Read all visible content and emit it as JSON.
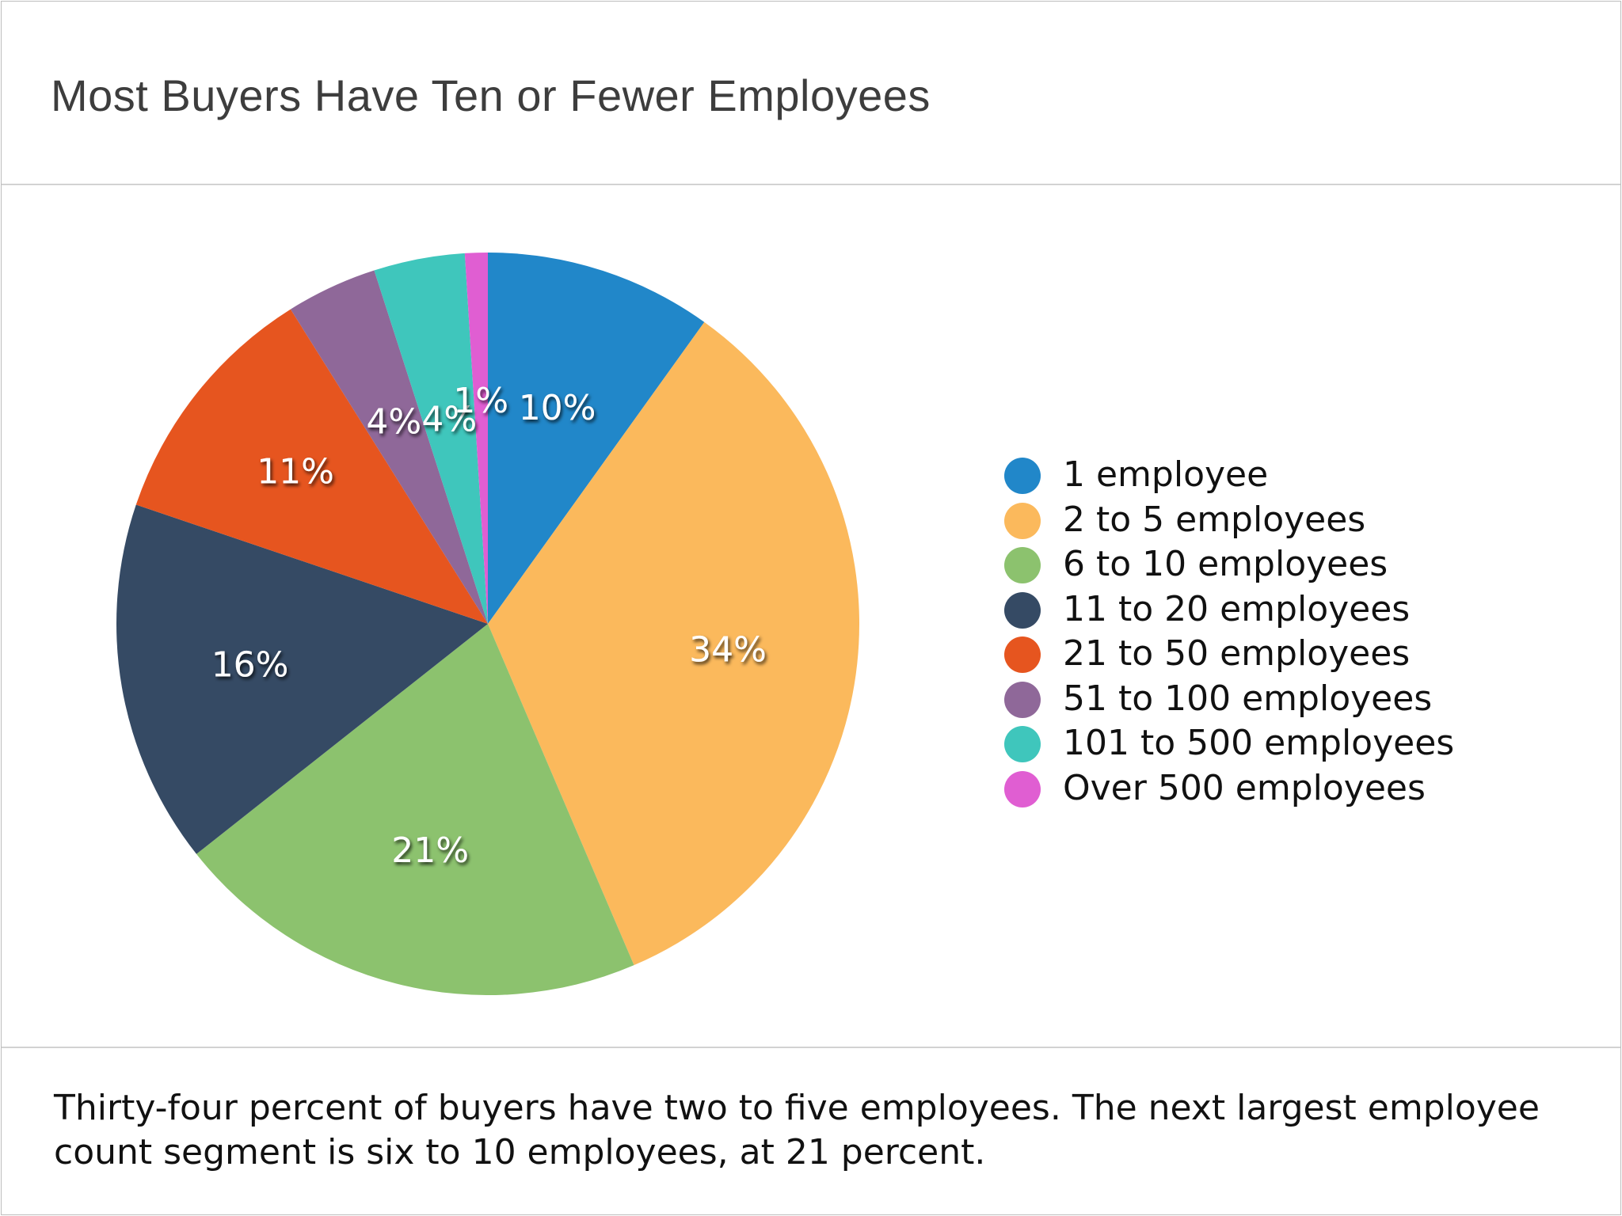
{
  "title": "Most Buyers Have Ten or Fewer Employees",
  "caption": "Thirty-four percent of buyers have two to five employees. The next largest employee count segment is six to 10 employees, at 21 percent.",
  "chart_data": {
    "type": "pie",
    "title": "Most Buyers Have Ten or Fewer Employees",
    "legend_position": "right",
    "start_angle": "12 o'clock",
    "direction": "clockwise",
    "slices": [
      {
        "name": "1 employee",
        "value": 10,
        "label": "10%",
        "color": "#2187c9"
      },
      {
        "name": "2 to 5 employees",
        "value": 34,
        "label": "34%",
        "color": "#fbb95c"
      },
      {
        "name": "6 to 10 employees",
        "value": 21,
        "label": "21%",
        "color": "#8cc26e"
      },
      {
        "name": "11 to 20 employees",
        "value": 16,
        "label": "16%",
        "color": "#354a64"
      },
      {
        "name": "21 to 50 employees",
        "value": 11,
        "label": "11%",
        "color": "#e6551f"
      },
      {
        "name": "51 to 100 employees",
        "value": 4,
        "label": "4%",
        "color": "#8f6899"
      },
      {
        "name": "101 to 500 employees",
        "value": 4,
        "label": "4%",
        "color": "#3fc6bc"
      },
      {
        "name": "Over 500 employees",
        "value": 1,
        "label": "1%",
        "color": "#e05ed2"
      }
    ]
  }
}
